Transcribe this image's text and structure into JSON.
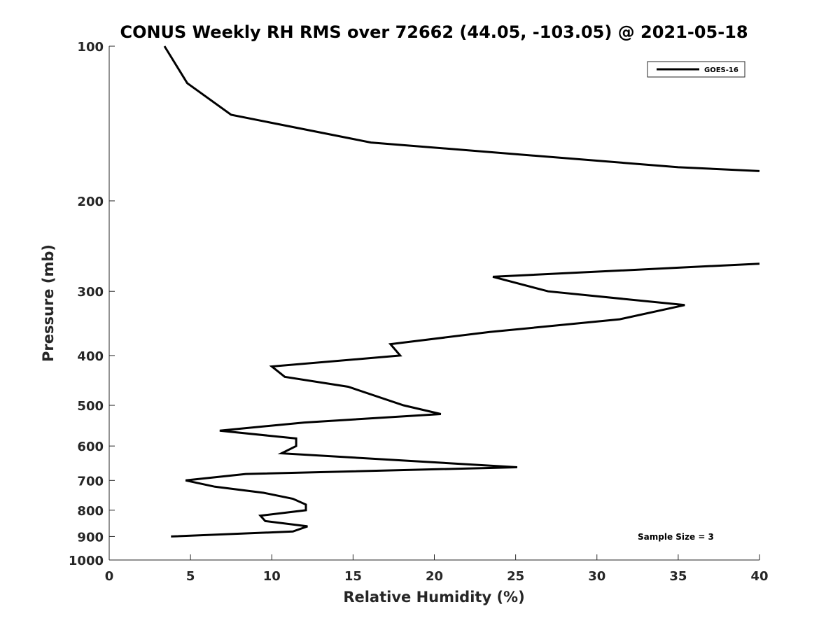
{
  "chart_data": {
    "type": "line",
    "title": "CONUS Weekly RH RMS over 72662 (44.05, -103.05) @ 2021-05-18",
    "xlabel": "Relative Humidity (%)",
    "ylabel": "Pressure (mb)",
    "xlim": [
      0,
      40
    ],
    "ylim": [
      100,
      1000
    ],
    "y_scale": "log",
    "y_reversed": true,
    "grid": false,
    "legend_position": "top-right",
    "x_ticks": [
      "0",
      "5",
      "10",
      "15",
      "20",
      "25",
      "30",
      "35",
      "40"
    ],
    "y_ticks": [
      "100",
      "200",
      "300",
      "400",
      "500",
      "600",
      "700",
      "800",
      "900",
      "1000"
    ],
    "series": [
      {
        "name": "GOES-16",
        "color": "#000000",
        "points": [
          {
            "x": 3.4,
            "p": 100
          },
          {
            "x": 4.8,
            "p": 118
          },
          {
            "x": 7.5,
            "p": 136
          },
          {
            "x": 16.1,
            "p": 154
          },
          {
            "x": 35.0,
            "p": 172
          },
          {
            "x": 40.0,
            "p": 175
          },
          {
            "x": null,
            "p": null
          },
          {
            "x": 40.0,
            "p": 265
          },
          {
            "x": 23.6,
            "p": 281
          },
          {
            "x": 27.0,
            "p": 300
          },
          {
            "x": 35.4,
            "p": 319
          },
          {
            "x": 31.4,
            "p": 340
          },
          {
            "x": 23.4,
            "p": 360
          },
          {
            "x": 17.3,
            "p": 380
          },
          {
            "x": 17.9,
            "p": 400
          },
          {
            "x": 10.0,
            "p": 420
          },
          {
            "x": 10.8,
            "p": 440
          },
          {
            "x": 14.7,
            "p": 460
          },
          {
            "x": 18.1,
            "p": 500
          },
          {
            "x": 20.4,
            "p": 520
          },
          {
            "x": 12.0,
            "p": 540
          },
          {
            "x": 6.8,
            "p": 560
          },
          {
            "x": 11.5,
            "p": 580
          },
          {
            "x": 11.5,
            "p": 600
          },
          {
            "x": 10.6,
            "p": 620
          },
          {
            "x": 25.1,
            "p": 660
          },
          {
            "x": 8.4,
            "p": 680
          },
          {
            "x": 4.7,
            "p": 700
          },
          {
            "x": 6.5,
            "p": 720
          },
          {
            "x": 9.5,
            "p": 740
          },
          {
            "x": 11.3,
            "p": 760
          },
          {
            "x": 12.1,
            "p": 780
          },
          {
            "x": 12.1,
            "p": 800
          },
          {
            "x": 9.3,
            "p": 820
          },
          {
            "x": 9.6,
            "p": 840
          },
          {
            "x": 12.2,
            "p": 860
          },
          {
            "x": 11.3,
            "p": 880
          },
          {
            "x": 3.8,
            "p": 900
          }
        ]
      }
    ],
    "legend": {
      "entries": [
        "GOES-16"
      ]
    },
    "annotation": "Sample Size = 3"
  }
}
